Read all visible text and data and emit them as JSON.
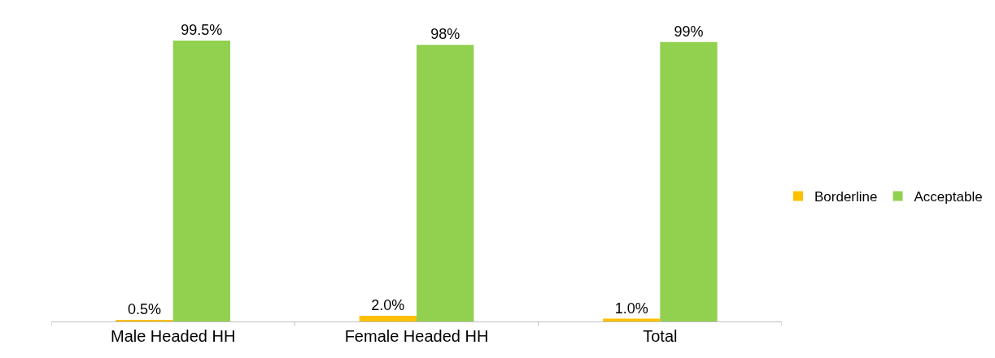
{
  "chart_data": {
    "type": "bar",
    "categories": [
      "Male Headed HH",
      "Female Headed HH",
      "Total"
    ],
    "series": [
      {
        "name": "Borderline",
        "color": "#ffc000",
        "values": [
          0.5,
          2.0,
          1.0
        ],
        "value_labels": [
          "0.5%",
          "2.0%",
          "1.0%"
        ]
      },
      {
        "name": "Acceptable",
        "color": "#92d050",
        "values": [
          99.5,
          98,
          99
        ],
        "value_labels": [
          "99.5%",
          "98%",
          "99%"
        ]
      }
    ],
    "legend": "right",
    "tick_labels": "x"
  }
}
